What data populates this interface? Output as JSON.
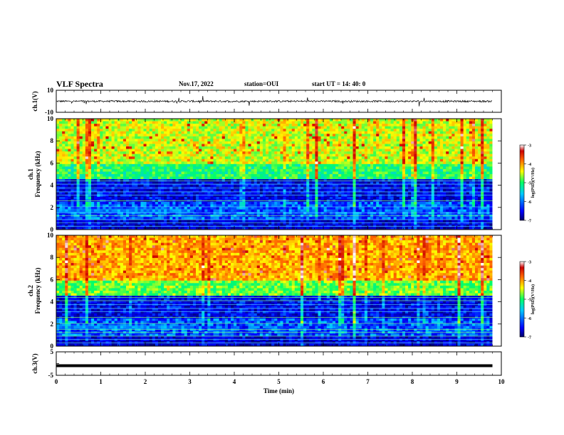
{
  "header": {
    "title": "VLF Spectra",
    "date": "Nov.17, 2022",
    "station": "station=OUI",
    "start": "start  UT =  14: 40: 0"
  },
  "colors": {
    "colormap": [
      "#000066",
      "#0000ff",
      "#00c8ff",
      "#00ff66",
      "#ffff00",
      "#ff6600",
      "#cc0000",
      "#ffffff"
    ],
    "trace": "#000000"
  },
  "chart_data": [
    {
      "type": "line",
      "ylabel": "ch.1(V)",
      "ylim": [
        -10,
        10
      ],
      "yticks": [
        "10",
        "-10"
      ],
      "description_series": "waveform",
      "baseline": 0,
      "xlim": [
        0,
        9.8
      ]
    },
    {
      "type": "heatmap",
      "ylabel": "Frequency (kHz)",
      "channel": "ch.1",
      "xlim": [
        0,
        10
      ],
      "ylim": [
        0,
        10
      ],
      "yticks": [
        "0",
        "2",
        "4",
        "6",
        "8",
        "10"
      ],
      "data_xmax": 9.8,
      "colorbar": {
        "label": "log(PSD)(V²/Hz)",
        "range": [
          -7,
          -3
        ],
        "ticks": [
          "-3",
          "-4",
          "-5",
          "-6",
          "-7"
        ]
      }
    },
    {
      "type": "heatmap",
      "ylabel": "Frequency (kHz)",
      "channel": "ch.2",
      "xlim": [
        0,
        10
      ],
      "ylim": [
        0,
        10
      ],
      "yticks": [
        "0",
        "2",
        "4",
        "6",
        "8",
        "10"
      ],
      "data_xmax": 9.8,
      "colorbar": {
        "label": "log(PSD)(V²/Hz)",
        "range": [
          -7,
          -3
        ],
        "ticks": [
          "-3",
          "-4",
          "-5",
          "-6",
          "-7"
        ]
      }
    },
    {
      "type": "line",
      "ylabel": "ch.3(V)",
      "ylim": [
        -5,
        5
      ],
      "yticks": [
        "5",
        "0",
        "-5"
      ],
      "values_constant": -0.9,
      "xlim": [
        0,
        9.8
      ],
      "xlabel": "Time  (min)",
      "xticks": [
        "0",
        "1",
        "2",
        "3",
        "4",
        "5",
        "6",
        "7",
        "8",
        "9",
        "10"
      ]
    }
  ],
  "labels": {
    "ch1_label": "ch.1",
    "ch2_label": "ch.2",
    "freq_label": "Frequency (kHz)",
    "ch1v": "ch.1(V)",
    "ch3v": "ch.3(V)",
    "xlabel": "Time  (min)",
    "cbar_label": "log(PSD)(V²/Hz)"
  }
}
